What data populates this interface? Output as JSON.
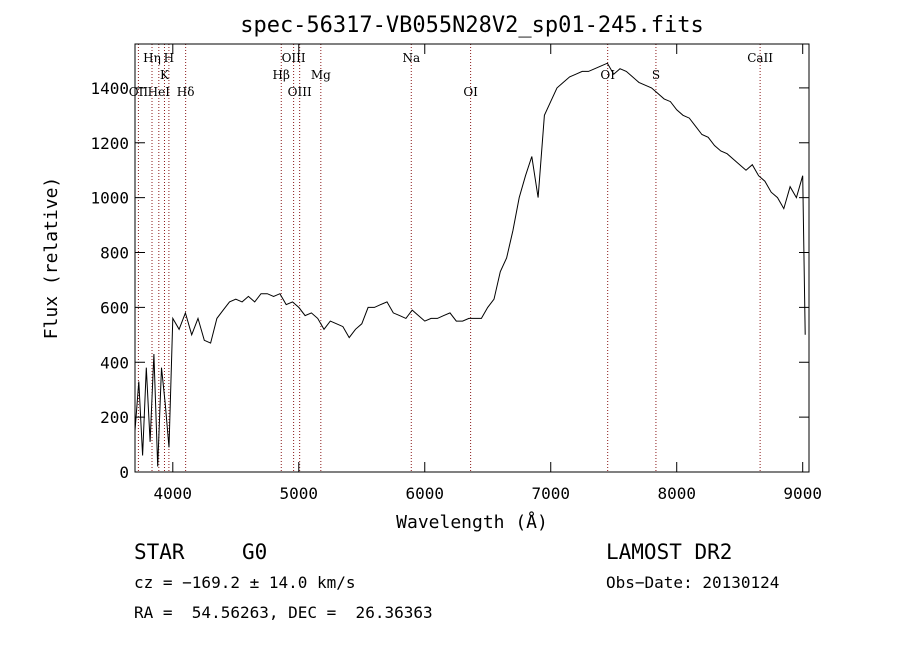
{
  "chart_data": {
    "type": "line",
    "title": "spec-56317-VB055N28V2_sp01-245.fits",
    "xlabel": "Wavelength (Å)",
    "ylabel": "Flux (relative)",
    "xlim": [
      3700,
      9050
    ],
    "ylim": [
      0,
      1560
    ],
    "x_ticks": [
      4000,
      5000,
      6000,
      7000,
      8000,
      9000
    ],
    "y_ticks": [
      0,
      200,
      400,
      600,
      800,
      1000,
      1200,
      1400
    ],
    "grid": false,
    "line_color": "#000000",
    "marker_color": "#8b1a1a",
    "line_markers": [
      {
        "x": 3727,
        "label": "OII",
        "row": 3
      },
      {
        "x": 3835,
        "label": "Hη",
        "row": 1
      },
      {
        "x": 3889,
        "label": "HeI",
        "row": 3
      },
      {
        "x": 3934,
        "label": "K",
        "row": 2
      },
      {
        "x": 3969,
        "label": "H",
        "row": 1
      },
      {
        "x": 4102,
        "label": "Hδ",
        "row": 3
      },
      {
        "x": 4861,
        "label": "Hβ",
        "row": 2
      },
      {
        "x": 4959,
        "label": "OIII",
        "row": 1
      },
      {
        "x": 5007,
        "label": "OIII",
        "row": 3
      },
      {
        "x": 5175,
        "label": "Mg",
        "row": 2
      },
      {
        "x": 5893,
        "label": "Na",
        "row": 1
      },
      {
        "x": 6364,
        "label": "OI",
        "row": 3
      },
      {
        "x": 7452,
        "label": "OI",
        "row": 2
      },
      {
        "x": 7835,
        "label": "S",
        "row": 2
      },
      {
        "x": 8662,
        "label": "CaII",
        "row": 1
      }
    ],
    "series": [
      {
        "x": [
          3700,
          3730,
          3760,
          3790,
          3820,
          3850,
          3880,
          3910,
          3940,
          3970,
          4000,
          4050,
          4100,
          4150,
          4200,
          4250,
          4300,
          4350,
          4400,
          4450,
          4500,
          4550,
          4600,
          4650,
          4700,
          4750,
          4800,
          4850,
          4900,
          4950,
          5000,
          5050,
          5100,
          5150,
          5200,
          5250,
          5300,
          5350,
          5400,
          5450,
          5500,
          5550,
          5600,
          5650,
          5700,
          5750,
          5800,
          5850,
          5900,
          5950,
          6000,
          6050,
          6100,
          6150,
          6200,
          6250,
          6300,
          6350,
          6400,
          6450,
          6500,
          6550,
          6600,
          6650,
          6700,
          6750,
          6800,
          6850,
          6900,
          6950,
          7000,
          7050,
          7100,
          7150,
          7200,
          7250,
          7300,
          7350,
          7400,
          7450,
          7500,
          7550,
          7600,
          7650,
          7700,
          7750,
          7800,
          7850,
          7900,
          7950,
          8000,
          8050,
          8100,
          8150,
          8200,
          8250,
          8300,
          8350,
          8400,
          8450,
          8500,
          8550,
          8600,
          8650,
          8700,
          8750,
          8800,
          8850,
          8900,
          8950,
          9000,
          9020
        ],
        "y": [
          150,
          330,
          60,
          380,
          110,
          430,
          20,
          380,
          250,
          90,
          560,
          520,
          580,
          500,
          560,
          480,
          470,
          560,
          590,
          620,
          630,
          620,
          640,
          620,
          650,
          650,
          640,
          650,
          610,
          620,
          600,
          570,
          580,
          560,
          520,
          550,
          540,
          530,
          490,
          520,
          540,
          600,
          600,
          610,
          620,
          580,
          570,
          560,
          590,
          570,
          550,
          560,
          560,
          570,
          580,
          550,
          550,
          560,
          560,
          560,
          600,
          630,
          730,
          780,
          880,
          1000,
          1080,
          1150,
          1000,
          1300,
          1350,
          1400,
          1420,
          1440,
          1450,
          1460,
          1460,
          1470,
          1480,
          1490,
          1450,
          1470,
          1460,
          1440,
          1420,
          1410,
          1400,
          1380,
          1360,
          1350,
          1320,
          1300,
          1290,
          1260,
          1230,
          1220,
          1190,
          1170,
          1160,
          1140,
          1120,
          1100,
          1120,
          1080,
          1060,
          1020,
          1000,
          960,
          1040,
          1000,
          1080,
          500
        ]
      }
    ]
  },
  "info": {
    "object_class": "STAR",
    "subclass": "G0",
    "survey": "LAMOST DR2",
    "cz": "cz = −169.2 ± 14.0 km/s",
    "obs_date": "Obs−Date: 20130124",
    "coords": "RA =  54.56263, DEC =  26.36363"
  }
}
